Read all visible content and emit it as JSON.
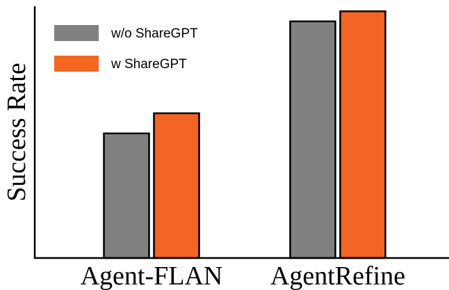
{
  "chart_data": {
    "type": "bar",
    "title": "",
    "xlabel": "",
    "ylabel": "Success Rate",
    "categories": [
      "Agent-FLAN",
      "AgentRefine"
    ],
    "series": [
      {
        "name": "w/o ShareGPT",
        "values": [
          49.5,
          94
        ],
        "color": "#808080"
      },
      {
        "name": "w ShareGPT",
        "values": [
          57.5,
          98
        ],
        "color": "#f26522"
      }
    ],
    "ylim": [
      0,
      100
    ],
    "y_ticks_shown": false,
    "grid": false,
    "legend_position": "top-left"
  }
}
